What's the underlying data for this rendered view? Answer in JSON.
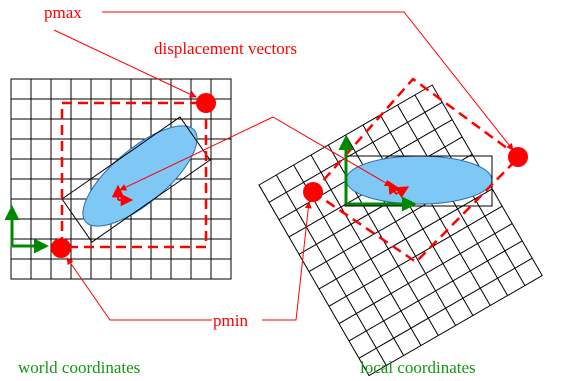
{
  "labels": {
    "pmax": "pmax",
    "displacement_vectors": "displacement vectors",
    "pmin": "pmin",
    "world_coordinates": "world coordinates",
    "local_coordinates": "local coordinates"
  },
  "colors": {
    "grid": "#000000",
    "accent_red": "#ff0000",
    "axis_green": "#008800",
    "caption_green": "#119911",
    "ellipse_fill": "#7fc8f5",
    "ellipse_stroke": "#2a6fb0"
  },
  "diagram": {
    "panels": [
      "world",
      "local"
    ],
    "world_grid": {
      "columns": 11,
      "rows": 10
    },
    "local_grid": {
      "columns": 10,
      "rows": 11,
      "rotation_deg": 30
    }
  }
}
